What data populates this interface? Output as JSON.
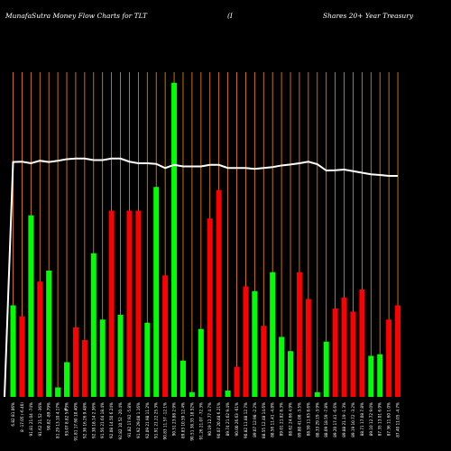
{
  "header": {
    "left_title": "MunafaSutra  Money Flow  Charts for TLT",
    "middle_title": "(I",
    "right_title": "Shares 20+  Year Treasury"
  },
  "colors": {
    "background": "#000000",
    "up_bar": "#00ff00",
    "down_bar": "#ff0000",
    "gridline": "#ff8c00",
    "line": "#ffffff",
    "text": "#ffffff"
  },
  "chart_data": {
    "type": "bar",
    "title": "MunafaSutra  Money Flow  Charts for TLT",
    "grid": true,
    "ylim": [
      0,
      100
    ],
    "categories": [
      "6.82 81.06%",
      "8 -17.05 (-6.40)",
      "91.81 21.04 -74%",
      "91.62 21.52 -36%",
      "90.82 -89.79%",
      "81.29 13.10 4.17%",
      "93.07 8.82 5.73%",
      "91.81 17.60 10.40%",
      "92.36 16.26 9.48%",
      "92.38 18.14 2.36%",
      "91.56 21.64 18.4%",
      "92.08 14.50 6.24%",
      "92.82 10.52 -20.4%",
      "91.82 17.92 -5.8%",
      "91.92 29.08 1.16%",
      "92.09 21.98 11.2%",
      "91.91 21.22 25.3%",
      "90.83 11.57 -12.1%",
      "90.51 23.88 2.9%",
      "89.83 10.59 12.4%",
      "90.51 38.33 18.52%",
      "91.26 21.07 -72.3%",
      "90.19 12.77 4.7%",
      "90.07 20.48 6.21%",
      "89.74 21.62 9.4%",
      "90.00 26.63 -61%",
      "90.82 11.88 12.7%",
      "89.07 12.98 -2.2%",
      "88.55 12.48 14.6%",
      "88.56 11.41 -4.8%",
      "89.01 21.82 8.3%",
      "88.62 24.66 4.9%",
      "89.80 41.08 -3.5%",
      "88.59 11.65 8.6%",
      "88.33 29.19 -3.9%",
      "88.09 18.59 -7.8%",
      "89.20 17.41 -6.6%",
      "89.88 21.19 -1.3%",
      "89.19 10.72 -3.2%",
      "88.71 17.08 7.8%",
      "89.10 12.72 9.0%",
      "87.35 13.01 6.9%",
      "87.36 11.60 1.0%",
      "87.40 11.05 -4.7%"
    ],
    "series": [
      {
        "values": [
          29,
          25.5,
          57.5,
          36.5,
          40,
          3,
          11,
          22,
          18,
          45.5,
          24.5,
          59,
          26,
          59,
          59,
          23.5,
          66.5,
          38.5,
          99.5,
          11.5,
          1.5,
          21.5,
          56.5,
          65.5,
          2,
          9.5,
          35,
          33.5,
          22.5,
          39.5,
          19,
          14.5,
          39.5,
          31,
          1.5,
          17.5,
          28,
          31.5,
          27,
          34,
          13,
          13.5,
          24.5,
          29
        ],
        "colors": [
          "up",
          "down",
          "up",
          "down",
          "up",
          "up",
          "up",
          "down",
          "down",
          "up",
          "up",
          "down",
          "up",
          "down",
          "down",
          "up",
          "up",
          "down",
          "up",
          "up",
          "up",
          "up",
          "down",
          "down",
          "up",
          "down",
          "down",
          "up",
          "down",
          "up",
          "up",
          "up",
          "down",
          "down",
          "up",
          "up",
          "down",
          "down",
          "down",
          "down",
          "up",
          "up",
          "down",
          "down"
        ]
      }
    ],
    "line_series": {
      "values": [
        74.4,
        74.5,
        74.0,
        74.8,
        74.4,
        74.8,
        75.3,
        75.5,
        75.5,
        75.0,
        75.0,
        75.5,
        75.5,
        74.5,
        74.0,
        74.0,
        73.8,
        72.5,
        73.5,
        73.0,
        73.0,
        73.0,
        73.5,
        73.5,
        72.5,
        72.5,
        72.5,
        72.2,
        72.5,
        72.8,
        73.3,
        73.6,
        74.0,
        74.5,
        73.7,
        71.7,
        71.8,
        72.0,
        71.5,
        71.0,
        70.5,
        70.3,
        70.0,
        70.0
      ],
      "start_value": 0
    }
  },
  "x_axis": {
    "first_label": "6.82 81.06%",
    "second_label": "%"
  }
}
